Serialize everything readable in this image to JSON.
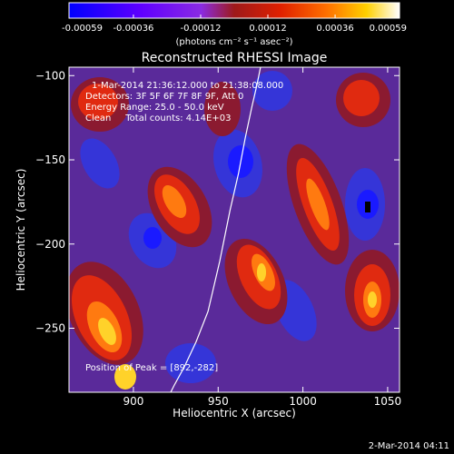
{
  "colorbar": {
    "tick_labels": [
      "-0.00059",
      "-0.00036",
      "-0.00012",
      "0.00012",
      "0.00036",
      "0.00059"
    ],
    "unit_label": "(photons cm⁻² s⁻¹ asec⁻²)",
    "range": [
      -0.00059,
      0.00059
    ],
    "colors": [
      "#0000ff",
      "#6000ff",
      "#8a2be2",
      "#9e1a1a",
      "#e02000",
      "#ff7000",
      "#ffd000",
      "#ffffff"
    ]
  },
  "chart_data": {
    "type": "heatmap",
    "title": "Reconstructed RHESSI Image",
    "xlabel": "Heliocentric X (arcsec)",
    "ylabel": "Heliocentric Y (arcsec)",
    "xlim": [
      862,
      1057
    ],
    "ylim": [
      -288,
      -95
    ],
    "x_ticks": [
      900,
      950,
      1000,
      1050
    ],
    "y_ticks": [
      -100,
      -150,
      -200,
      -250
    ],
    "limb_curve": {
      "x": [
        922,
        924,
        930,
        937,
        944,
        951,
        957,
        962,
        966,
        970,
        973,
        975
      ],
      "y": [
        -288,
        -284,
        -273,
        -258,
        -240,
        -210,
        -180,
        -158,
        -137,
        -118,
        -105,
        -95
      ]
    },
    "peak": {
      "x": 892,
      "y": -282
    },
    "annotations": [
      "1-Mar-2014 21:36:12.000 to 21:38:08.000",
      "Detectors: 3F 5F 6F 7F 8F 9F, Att 0",
      "Energy Range: 25.0 - 50.0 keV",
      "Clean     Total counts: 4.14E+03",
      "Position of Peak = [892,-282]"
    ]
  },
  "footer": {
    "date": "2-Mar-2014 04:11"
  }
}
